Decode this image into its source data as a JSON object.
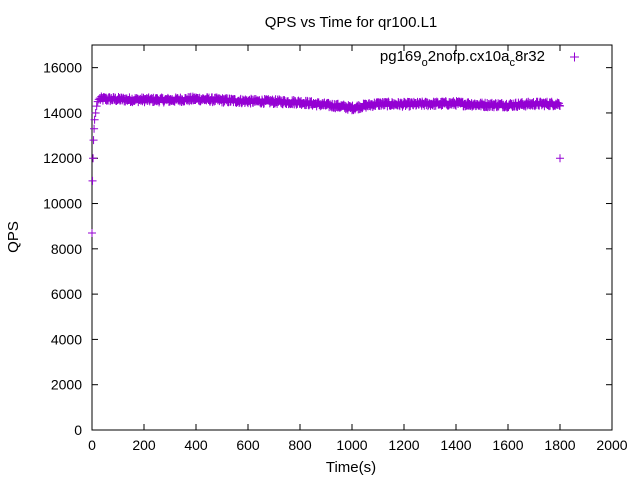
{
  "chart_data": {
    "type": "scatter",
    "title": "QPS vs Time for qr100.L1",
    "xlabel": "Time(s)",
    "ylabel": "QPS",
    "xlim": [
      0,
      2000
    ],
    "ylim": [
      0,
      17000
    ],
    "xticks": [
      0,
      200,
      400,
      600,
      800,
      1000,
      1200,
      1400,
      1600,
      1800,
      2000
    ],
    "yticks": [
      0,
      2000,
      4000,
      6000,
      8000,
      10000,
      12000,
      14000,
      16000
    ],
    "grid": false,
    "legend_position": "top-right",
    "marker": "+",
    "color": "#9400d3",
    "series": [
      {
        "name": "pg169_o2nofp.cx10a_c8r32",
        "name_parts": [
          {
            "t": "pg169",
            "sub": false
          },
          {
            "t": "o",
            "sub": true
          },
          {
            "t": "2nofp.cx10a",
            "sub": false
          },
          {
            "t": "c",
            "sub": true
          },
          {
            "t": "8r32",
            "sub": false
          }
        ],
        "startup": [
          [
            0,
            8700
          ],
          [
            2,
            11000
          ],
          [
            4,
            12000
          ],
          [
            6,
            12800
          ],
          [
            8,
            13300
          ],
          [
            10,
            13700
          ],
          [
            14,
            14000
          ],
          [
            18,
            14300
          ],
          [
            22,
            14500
          ],
          [
            26,
            14600
          ]
        ],
        "trend": [
          [
            30,
            14620
          ],
          [
            100,
            14600
          ],
          [
            200,
            14580
          ],
          [
            300,
            14570
          ],
          [
            400,
            14620
          ],
          [
            500,
            14560
          ],
          [
            600,
            14520
          ],
          [
            700,
            14500
          ],
          [
            800,
            14470
          ],
          [
            900,
            14350
          ],
          [
            950,
            14300
          ],
          [
            1000,
            14220
          ],
          [
            1050,
            14320
          ],
          [
            1100,
            14400
          ],
          [
            1200,
            14380
          ],
          [
            1300,
            14400
          ],
          [
            1400,
            14420
          ],
          [
            1500,
            14360
          ],
          [
            1600,
            14350
          ],
          [
            1700,
            14400
          ],
          [
            1800,
            14400
          ]
        ],
        "noise": 110,
        "step": 2,
        "outliers": [
          [
            1800,
            12000
          ]
        ]
      }
    ]
  }
}
